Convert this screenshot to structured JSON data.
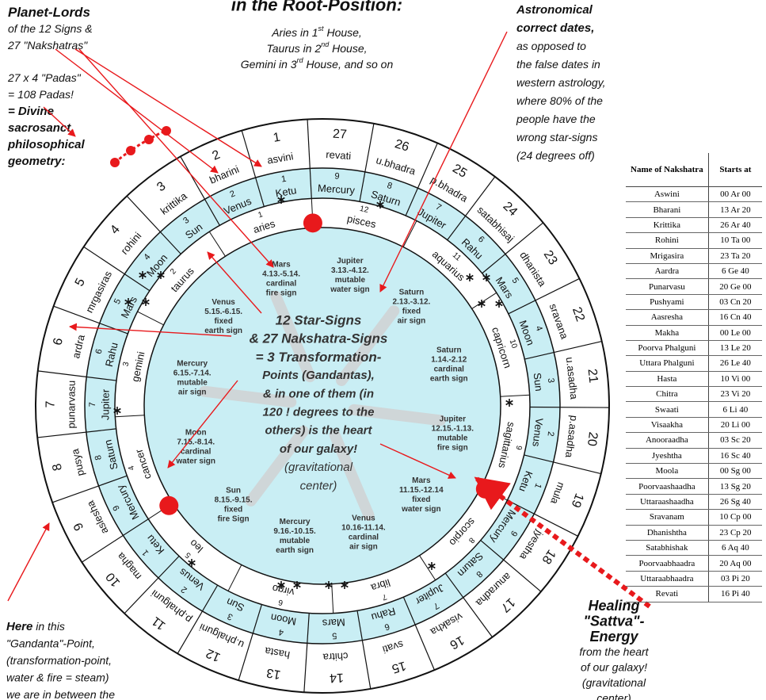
{
  "title": "in the Root-Position:",
  "top_note": [
    [
      "Aries in 1",
      "st",
      " House,"
    ],
    [
      "Taurus in 2",
      "nd",
      " House,"
    ],
    [
      "Gemini in 3",
      "rd",
      " House, and so on"
    ]
  ],
  "annotations": {
    "planet_lords": [
      {
        "text": "Planet-Lords",
        "style": "heading"
      },
      {
        "text": "of the 12 Signs &"
      },
      {
        "text": "27 \"Nakshatras\""
      }
    ],
    "padas": [
      {
        "text": "27 x 4 \"Padas\""
      },
      {
        "text": "= 108 Padas!"
      },
      {
        "text": "= Divine",
        "style": "bold"
      },
      {
        "text": "sacrosanct,",
        "style": "bold"
      },
      {
        "text": "philosophical",
        "style": "bold"
      },
      {
        "text": "geometry:",
        "style": "bold"
      }
    ],
    "astronomical": [
      {
        "text": "Astronomical",
        "style": "bold"
      },
      {
        "text": "correct dates,",
        "style": "bold"
      },
      {
        "text": "as opposed to"
      },
      {
        "text": "the false dates in"
      },
      {
        "text": "western astrology,"
      },
      {
        "text": "where 80% of the"
      },
      {
        "text": "people have the"
      },
      {
        "text": "wrong star-signs"
      },
      {
        "text": "(24 degrees off)"
      }
    ],
    "here": [
      {
        "lead": "Here",
        "text": " in this"
      },
      {
        "text": "\"Gandanta\"-Point,"
      },
      {
        "text": "(transformation-point,"
      },
      {
        "text": "water & fire = steam)"
      },
      {
        "text": "we are in between the"
      }
    ],
    "healing": [
      {
        "text": "Healing",
        "style": "bold"
      },
      {
        "text": "\"Sattva\"-",
        "style": "bold"
      },
      {
        "text": "Energy",
        "style": "bold"
      },
      {
        "text": "from the heart"
      },
      {
        "text": "of our galaxy!"
      },
      {
        "text": "(gravitational"
      },
      {
        "text": "center)"
      }
    ]
  },
  "wheel": {
    "nakshatras": [
      {
        "number": 1,
        "name": "asvini",
        "lord_number": 1,
        "lord": "Ketu"
      },
      {
        "number": 2,
        "name": "bharini",
        "lord_number": 2,
        "lord": "Venus"
      },
      {
        "number": 3,
        "name": "krittika",
        "lord_number": 3,
        "lord": "Sun"
      },
      {
        "number": 4,
        "name": "rohini",
        "lord_number": 4,
        "lord": "Moon"
      },
      {
        "number": 5,
        "name": "mrgasiras",
        "lord_number": 5,
        "lord": "Mars"
      },
      {
        "number": 6,
        "name": "ardra",
        "lord_number": 6,
        "lord": "Rahu"
      },
      {
        "number": 7,
        "name": "punarvasu",
        "lord_number": 7,
        "lord": "Jupiter"
      },
      {
        "number": 8,
        "name": "pusya",
        "lord_number": 8,
        "lord": "Saturn"
      },
      {
        "number": 9,
        "name": "aslesha",
        "lord_number": 9,
        "lord": "Mercury"
      },
      {
        "number": 10,
        "name": "magha",
        "lord_number": 1,
        "lord": "Ketu"
      },
      {
        "number": 11,
        "name": "p.phalguni",
        "lord_number": 2,
        "lord": "Venus"
      },
      {
        "number": 12,
        "name": "u.phalguni",
        "lord_number": 3,
        "lord": "Sun"
      },
      {
        "number": 13,
        "name": "hasta",
        "lord_number": 4,
        "lord": "Moon"
      },
      {
        "number": 14,
        "name": "chitra",
        "lord_number": 5,
        "lord": "Mars"
      },
      {
        "number": 15,
        "name": "svati",
        "lord_number": 6,
        "lord": "Rahu"
      },
      {
        "number": 16,
        "name": "visakha",
        "lord_number": 7,
        "lord": "Jupiter"
      },
      {
        "number": 17,
        "name": "anuradha",
        "lord_number": 8,
        "lord": "Saturn"
      },
      {
        "number": 18,
        "name": "jyestha",
        "lord_number": 9,
        "lord": "Mercury"
      },
      {
        "number": 19,
        "name": "mula",
        "lord_number": 1,
        "lord": "Ketu"
      },
      {
        "number": 20,
        "name": "p.asadha",
        "lord_number": 2,
        "lord": "Venus"
      },
      {
        "number": 21,
        "name": "u.asadha",
        "lord_number": 3,
        "lord": "Sun"
      },
      {
        "number": 22,
        "name": "sravana",
        "lord_number": 4,
        "lord": "Moon"
      },
      {
        "number": 23,
        "name": "dhanista",
        "lord_number": 5,
        "lord": "Mars"
      },
      {
        "number": 24,
        "name": "satabhisaj",
        "lord_number": 6,
        "lord": "Rahu"
      },
      {
        "number": 25,
        "name": "p.bhadra",
        "lord_number": 7,
        "lord": "Jupiter"
      },
      {
        "number": 26,
        "name": "u.bhadra",
        "lord_number": 8,
        "lord": "Saturn"
      },
      {
        "number": 27,
        "name": "revati",
        "lord_number": 9,
        "lord": "Mercury"
      }
    ],
    "signs": [
      {
        "number": 1,
        "name": "aries",
        "ruler": "Mars",
        "dates": "4.13.-5.14.",
        "quality": "cardinal",
        "element": "fire sign"
      },
      {
        "number": 2,
        "name": "taurus",
        "ruler": "Venus",
        "dates": "5.15.-6.15.",
        "quality": "fixed",
        "element": "earth sign"
      },
      {
        "number": 3,
        "name": "gemini",
        "ruler": "Mercury",
        "dates": "6.15.-7.14.",
        "quality": "mutable",
        "element": "air sign"
      },
      {
        "number": 4,
        "name": "cancer",
        "ruler": "Moon",
        "dates": "7.15.-8.14.",
        "quality": "cardinal",
        "element": "water sign"
      },
      {
        "number": 5,
        "name": "leo",
        "ruler": "Sun",
        "dates": "8.15.-9.15.",
        "quality": "fixed",
        "element": "fire Sign"
      },
      {
        "number": 6,
        "name": "virgo",
        "ruler": "Mercury",
        "dates": "9.16.-10.15.",
        "quality": "mutable",
        "element": "earth sign"
      },
      {
        "number": 7,
        "name": "libra",
        "ruler": "Venus",
        "dates": "10.16-11.14.",
        "quality": "cardinal",
        "element": "air sign"
      },
      {
        "number": 8,
        "name": "scorpio",
        "ruler": "Mars",
        "dates": "11.15.-12.14",
        "quality": "fixed",
        "element": "water sign"
      },
      {
        "number": 9,
        "name": "sagittarius",
        "ruler": "Jupiter",
        "dates": "12.15.-1.13.",
        "quality": "mutable",
        "element": "fire sign"
      },
      {
        "number": 10,
        "name": "capricorn",
        "ruler": "Saturn",
        "dates": "1.14.-2.12",
        "quality": "cardinal",
        "element": "earth sign"
      },
      {
        "number": 11,
        "name": "aquarius",
        "ruler": "Saturn",
        "dates": "2.13.-3.12.",
        "quality": "fixed",
        "element": "air sign"
      },
      {
        "number": 12,
        "name": "pisces",
        "ruler": "Jupiter",
        "dates": "3.13.-4.12.",
        "quality": "mutable",
        "element": "water sign"
      }
    ],
    "center_text": [
      {
        "text": "12 Star-Signs",
        "style": "heading"
      },
      {
        "text": "& 27 Nakshatra-Signs",
        "style": "heading"
      },
      {
        "text": "= 3 Transformation-",
        "style": "heading"
      },
      {
        "text": "Points (Gandantas),",
        "style": "bold"
      },
      {
        "text": "& in one of them (in",
        "style": "bold"
      },
      {
        "text": "120 ! degrees to the",
        "style": "bold"
      },
      {
        "text": "others) is the heart",
        "style": "bold"
      },
      {
        "text": "of our galaxy!",
        "style": "bold"
      },
      {
        "text": "(gravitational"
      },
      {
        "text": "center)"
      }
    ]
  },
  "table": {
    "header": [
      "Name of Nakshatra",
      "Starts at"
    ],
    "rows": [
      [
        "Aswini",
        "00 Ar 00"
      ],
      [
        "Bharani",
        "13 Ar 20"
      ],
      [
        "Krittika",
        "26 Ar 40"
      ],
      [
        "Rohini",
        "10 Ta 00"
      ],
      [
        "Mrigasira",
        "23 Ta 20"
      ],
      [
        "Aardra",
        "6 Ge 40"
      ],
      [
        "Punarvasu",
        "20 Ge 00"
      ],
      [
        "Pushyami",
        "03 Cn 20"
      ],
      [
        "Aasresha",
        "16 Cn 40"
      ],
      [
        "Makha",
        "00 Le 00"
      ],
      [
        "Poorva Phalguni",
        "13 Le 20"
      ],
      [
        "Uttara Phalguni",
        "26 Le 40"
      ],
      [
        "Hasta",
        "10 Vi 00"
      ],
      [
        "Chitra",
        "23 Vi 20"
      ],
      [
        "Swaati",
        "6 Li 40"
      ],
      [
        "Visaakha",
        "20 Li 00"
      ],
      [
        "Anooraadha",
        "03 Sc 20"
      ],
      [
        "Jyeshtha",
        "16 Sc 40"
      ],
      [
        "Moola",
        "00 Sg 00"
      ],
      [
        "Poorvaashaadha",
        "13 Sg 20"
      ],
      [
        "Uttaraashaadha",
        "26 Sg 40"
      ],
      [
        "Sravanam",
        "10 Cp 00"
      ],
      [
        "Dhanishtha",
        "23 Cp 20"
      ],
      [
        "Satabhishak",
        "6 Aq 40"
      ],
      [
        "Poorvaabhaadra",
        "20 Aq 00"
      ],
      [
        "Uttaraabhaadra",
        "03 Pi 20"
      ],
      [
        "Revati",
        "16 Pi 40"
      ]
    ]
  }
}
